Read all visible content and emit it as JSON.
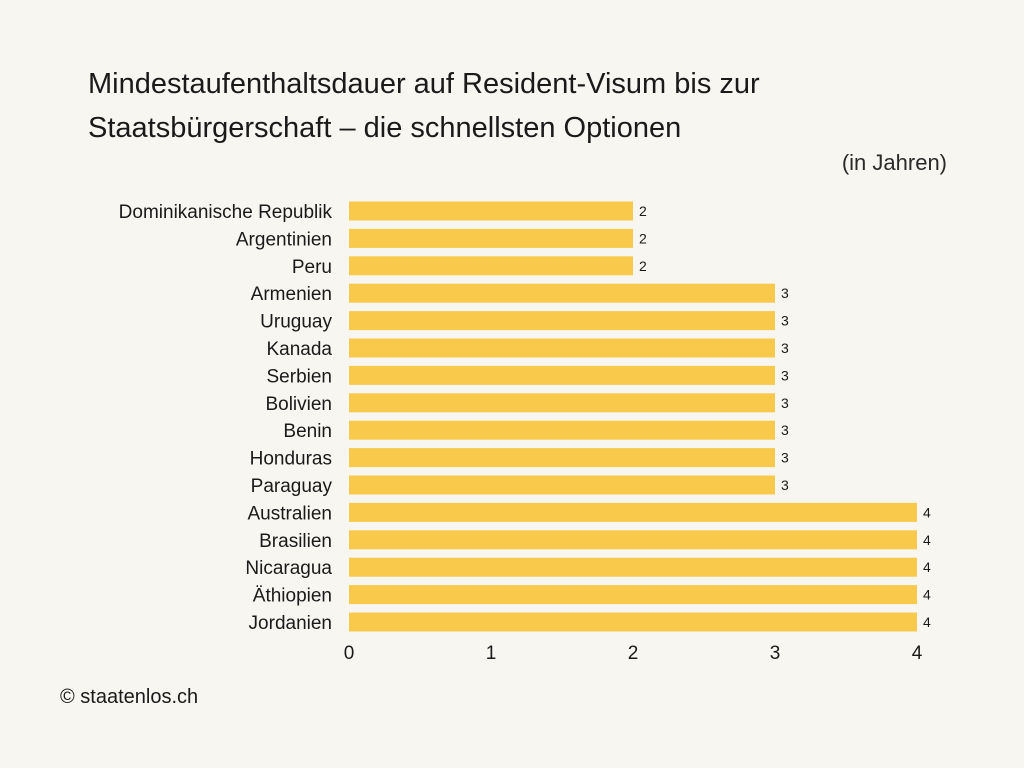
{
  "title_line1": "Mindestaufenthaltsdauer auf Resident-Visum bis zur",
  "title_line2": "Staatsbürgerschaft – die schnellsten Optionen",
  "subtitle": "(in Jahren)",
  "credit": "© staatenlos.ch",
  "colors": {
    "background": "#f8f6f1",
    "bar": "#f8c94a",
    "text": "#1a1a1a"
  },
  "chart_data": {
    "type": "bar",
    "orientation": "horizontal",
    "title": "Mindestaufenthaltsdauer auf Resident-Visum bis zur Staatsbürgerschaft – die schnellsten Optionen",
    "subtitle": "(in Jahren)",
    "categories": [
      "Dominikanische Republik",
      "Argentinien",
      "Peru",
      "Armenien",
      "Uruguay",
      "Kanada",
      "Serbien",
      "Bolivien",
      "Benin",
      "Honduras",
      "Paraguay",
      "Australien",
      "Brasilien",
      "Nicaragua",
      "Äthiopien",
      "Jordanien"
    ],
    "values": [
      2,
      2,
      2,
      3,
      3,
      3,
      3,
      3,
      3,
      3,
      3,
      4,
      4,
      4,
      4,
      4
    ],
    "x_ticks": [
      0,
      1,
      2,
      3,
      4
    ],
    "xlim": [
      0,
      4
    ],
    "xlabel": "",
    "ylabel": "",
    "grid": false,
    "legend": "none",
    "data_labels": true
  }
}
